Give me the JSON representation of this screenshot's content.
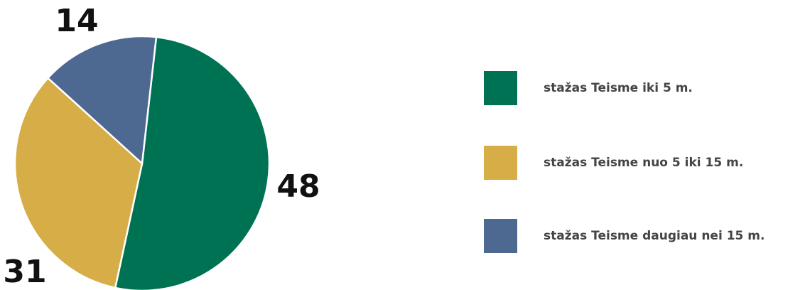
{
  "chart_data": {
    "type": "pie",
    "categories": [
      "stažas Teisme iki 5 m.",
      "stažas Teisme nuo 5 iki 15 m.",
      "stažas Teisme daugiau nei 15 m."
    ],
    "values": [
      48,
      31,
      14
    ],
    "colors": [
      "#007254",
      "#d7ad48",
      "#4d6891"
    ],
    "legend": "right"
  }
}
